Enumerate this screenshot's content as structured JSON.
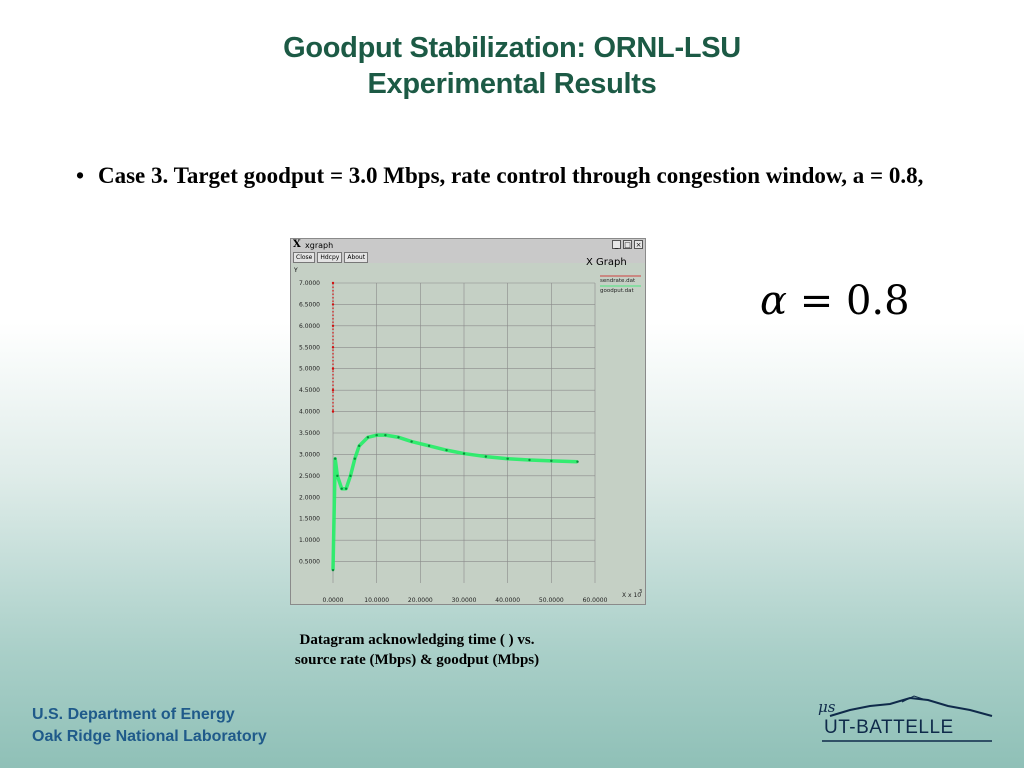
{
  "title": {
    "line1": "Goodput Stabilization: ORNL-LSU",
    "line2": "Experimental Results"
  },
  "bullet": {
    "symbol": "•",
    "text": "Case 3. Target goodput = 3.0 Mbps, rate control through congestion window, a = 0.8,"
  },
  "xgraph_window": {
    "title": "xgraph",
    "buttons": [
      "Close",
      "Hdcpy",
      "About"
    ],
    "graph_title": "X Graph",
    "y_axis_label": "Y",
    "x_axis_label": "X x 10",
    "x_axis_exponent": "3",
    "window_controls": [
      "_",
      "□",
      "×"
    ],
    "colors": {
      "background": "#c9c9c9",
      "plot": "#c5d0c5",
      "grid": "#8a8a8a",
      "sendrate": "#d01010",
      "goodput": "#22ee66"
    }
  },
  "chart_data": {
    "type": "line",
    "title": "X Graph",
    "xlabel": "X x 10^3",
    "ylabel": "Y",
    "xlim": [
      0,
      60
    ],
    "ylim": [
      0,
      7.0
    ],
    "x_ticks": [
      "0.0000",
      "10.0000",
      "20.0000",
      "30.0000",
      "40.0000",
      "50.0000",
      "60.0000"
    ],
    "y_ticks": [
      "7.0000",
      "6.5000",
      "6.0000",
      "5.5000",
      "5.0000",
      "4.5000",
      "4.0000",
      "3.5000",
      "3.0000",
      "2.5000",
      "2.0000",
      "1.5000",
      "1.0000",
      "0.5000"
    ],
    "grid": true,
    "legend_position": "top-right",
    "series": [
      {
        "name": "sendrate.dat",
        "color": "#d01010",
        "x": [
          0,
          0,
          0,
          0,
          0,
          0,
          0
        ],
        "y": [
          7.0,
          6.5,
          6.0,
          5.5,
          5.0,
          4.5,
          4.0
        ]
      },
      {
        "name": "goodput.dat",
        "color": "#22ee66",
        "x": [
          0,
          0.5,
          1,
          2,
          3,
          4,
          5,
          6,
          8,
          10,
          12,
          15,
          18,
          22,
          26,
          30,
          35,
          40,
          45,
          50,
          56
        ],
        "y": [
          0.3,
          2.9,
          2.5,
          2.2,
          2.2,
          2.5,
          2.9,
          3.2,
          3.4,
          3.45,
          3.45,
          3.4,
          3.3,
          3.2,
          3.1,
          3.02,
          2.95,
          2.9,
          2.87,
          2.85,
          2.83
        ]
      }
    ]
  },
  "equation": {
    "symbol": "α",
    "operator": "=",
    "value": "0.8"
  },
  "caption": {
    "line1": "Datagram acknowledging time (       ) vs.",
    "line2": "source rate (Mbps) & goodput (Mbps)"
  },
  "footer": {
    "line1": "U.S. Department of Energy",
    "line2": "Oak Ridge National Laboratory"
  },
  "logo": {
    "mu_text": "μs",
    "text": "UT-BATTELLE"
  }
}
